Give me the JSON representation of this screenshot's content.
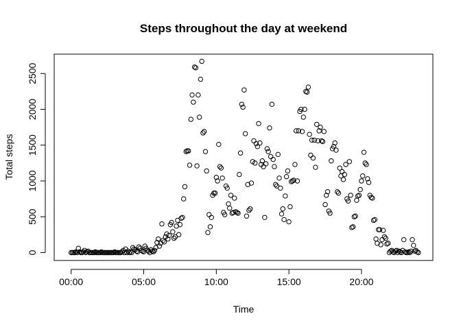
{
  "chart_data": {
    "type": "scatter",
    "title": "Steps throughout the day at weekend",
    "xlabel": "Time",
    "ylabel": "Total steps",
    "x_unit": "minutes since midnight",
    "xlim": [
      -70,
      1495
    ],
    "ylim": [
      -110,
      2770
    ],
    "x_ticks": [
      {
        "value": 0,
        "label": "00:00"
      },
      {
        "value": 300,
        "label": "05:00"
      },
      {
        "value": 600,
        "label": "10:00"
      },
      {
        "value": 900,
        "label": "15:00"
      },
      {
        "value": 1200,
        "label": "20:00"
      }
    ],
    "y_ticks": [
      {
        "value": 0,
        "label": "0"
      },
      {
        "value": 500,
        "label": "500"
      },
      {
        "value": 1000,
        "label": "1000"
      },
      {
        "value": 1500,
        "label": "1500"
      },
      {
        "value": 2000,
        "label": "2000"
      },
      {
        "value": 2500,
        "label": "2500"
      }
    ],
    "grid": false,
    "marker": "open-circle",
    "points": [
      [
        0,
        0
      ],
      [
        5,
        0
      ],
      [
        10,
        0
      ],
      [
        15,
        0
      ],
      [
        20,
        10
      ],
      [
        25,
        0
      ],
      [
        30,
        60
      ],
      [
        35,
        10
      ],
      [
        40,
        0
      ],
      [
        45,
        0
      ],
      [
        50,
        10
      ],
      [
        55,
        30
      ],
      [
        60,
        0
      ],
      [
        65,
        10
      ],
      [
        70,
        20
      ],
      [
        75,
        0
      ],
      [
        80,
        0
      ],
      [
        85,
        0
      ],
      [
        90,
        0
      ],
      [
        95,
        0
      ],
      [
        100,
        10
      ],
      [
        105,
        0
      ],
      [
        110,
        0
      ],
      [
        115,
        0
      ],
      [
        120,
        0
      ],
      [
        125,
        10
      ],
      [
        130,
        0
      ],
      [
        135,
        0
      ],
      [
        140,
        0
      ],
      [
        145,
        0
      ],
      [
        150,
        0
      ],
      [
        155,
        0
      ],
      [
        160,
        0
      ],
      [
        165,
        0
      ],
      [
        170,
        0
      ],
      [
        175,
        0
      ],
      [
        180,
        10
      ],
      [
        185,
        0
      ],
      [
        190,
        0
      ],
      [
        195,
        0
      ],
      [
        200,
        0
      ],
      [
        205,
        0
      ],
      [
        210,
        10
      ],
      [
        215,
        30
      ],
      [
        220,
        0
      ],
      [
        225,
        50
      ],
      [
        230,
        0
      ],
      [
        235,
        20
      ],
      [
        240,
        0
      ],
      [
        245,
        10
      ],
      [
        250,
        0
      ],
      [
        255,
        70
      ],
      [
        260,
        50
      ],
      [
        265,
        40
      ],
      [
        270,
        20
      ],
      [
        275,
        10
      ],
      [
        280,
        80
      ],
      [
        285,
        60
      ],
      [
        290,
        30
      ],
      [
        295,
        20
      ],
      [
        300,
        10
      ],
      [
        305,
        90
      ],
      [
        310,
        60
      ],
      [
        315,
        30
      ],
      [
        320,
        20
      ],
      [
        325,
        0
      ],
      [
        330,
        40
      ],
      [
        335,
        20
      ],
      [
        340,
        10
      ],
      [
        345,
        30
      ],
      [
        350,
        70
      ],
      [
        355,
        140
      ],
      [
        360,
        190
      ],
      [
        365,
        90
      ],
      [
        370,
        130
      ],
      [
        375,
        400
      ],
      [
        380,
        170
      ],
      [
        385,
        150
      ],
      [
        390,
        220
      ],
      [
        395,
        260
      ],
      [
        400,
        190
      ],
      [
        405,
        240
      ],
      [
        410,
        390
      ],
      [
        415,
        420
      ],
      [
        420,
        290
      ],
      [
        425,
        200
      ],
      [
        430,
        220
      ],
      [
        435,
        370
      ],
      [
        440,
        450
      ],
      [
        445,
        250
      ],
      [
        450,
        390
      ],
      [
        455,
        480
      ],
      [
        460,
        490
      ],
      [
        465,
        750
      ],
      [
        470,
        920
      ],
      [
        475,
        1410
      ],
      [
        480,
        1420
      ],
      [
        485,
        1420
      ],
      [
        490,
        1220
      ],
      [
        495,
        1860
      ],
      [
        500,
        2200
      ],
      [
        505,
        2100
      ],
      [
        510,
        2590
      ],
      [
        515,
        2580
      ],
      [
        520,
        1210
      ],
      [
        525,
        2200
      ],
      [
        530,
        1890
      ],
      [
        535,
        2420
      ],
      [
        540,
        2670
      ],
      [
        545,
        1670
      ],
      [
        550,
        1690
      ],
      [
        555,
        1410
      ],
      [
        560,
        1140
      ],
      [
        565,
        280
      ],
      [
        570,
        530
      ],
      [
        575,
        360
      ],
      [
        580,
        490
      ],
      [
        585,
        800
      ],
      [
        590,
        830
      ],
      [
        595,
        830
      ],
      [
        600,
        1050
      ],
      [
        605,
        1000
      ],
      [
        610,
        1510
      ],
      [
        615,
        1200
      ],
      [
        620,
        1180
      ],
      [
        625,
        1040
      ],
      [
        630,
        560
      ],
      [
        635,
        530
      ],
      [
        640,
        930
      ],
      [
        645,
        900
      ],
      [
        650,
        680
      ],
      [
        655,
        620
      ],
      [
        660,
        800
      ],
      [
        665,
        550
      ],
      [
        670,
        560
      ],
      [
        675,
        760
      ],
      [
        680,
        570
      ],
      [
        685,
        560
      ],
      [
        690,
        550
      ],
      [
        695,
        1090
      ],
      [
        700,
        1390
      ],
      [
        705,
        2070
      ],
      [
        710,
        2030
      ],
      [
        715,
        2270
      ],
      [
        720,
        1660
      ],
      [
        725,
        510
      ],
      [
        730,
        950
      ],
      [
        735,
        590
      ],
      [
        740,
        610
      ],
      [
        745,
        970
      ],
      [
        750,
        1270
      ],
      [
        755,
        1560
      ],
      [
        760,
        1250
      ],
      [
        765,
        1520
      ],
      [
        770,
        1480
      ],
      [
        775,
        1800
      ],
      [
        780,
        1530
      ],
      [
        785,
        1230
      ],
      [
        790,
        1280
      ],
      [
        795,
        1200
      ],
      [
        800,
        490
      ],
      [
        805,
        1240
      ],
      [
        810,
        1450
      ],
      [
        815,
        1410
      ],
      [
        820,
        1740
      ],
      [
        825,
        1340
      ],
      [
        830,
        2070
      ],
      [
        835,
        1300
      ],
      [
        840,
        1200
      ],
      [
        845,
        950
      ],
      [
        850,
        930
      ],
      [
        855,
        1370
      ],
      [
        860,
        1040
      ],
      [
        865,
        900
      ],
      [
        870,
        540
      ],
      [
        875,
        610
      ],
      [
        880,
        460
      ],
      [
        885,
        790
      ],
      [
        890,
        1060
      ],
      [
        895,
        1140
      ],
      [
        900,
        430
      ],
      [
        905,
        640
      ],
      [
        910,
        990
      ],
      [
        915,
        1000
      ],
      [
        920,
        1010
      ],
      [
        925,
        1230
      ],
      [
        930,
        1700
      ],
      [
        935,
        1000
      ],
      [
        940,
        1700
      ],
      [
        945,
        1970
      ],
      [
        950,
        2000
      ],
      [
        955,
        1690
      ],
      [
        960,
        1890
      ],
      [
        965,
        2000
      ],
      [
        970,
        2250
      ],
      [
        975,
        2240
      ],
      [
        980,
        2310
      ],
      [
        985,
        1650
      ],
      [
        990,
        1360
      ],
      [
        995,
        1570
      ],
      [
        1000,
        1320
      ],
      [
        1005,
        1570
      ],
      [
        1010,
        1190
      ],
      [
        1015,
        1790
      ],
      [
        1020,
        1560
      ],
      [
        1025,
        1700
      ],
      [
        1030,
        1750
      ],
      [
        1035,
        1560
      ],
      [
        1040,
        1550
      ],
      [
        1045,
        1690
      ],
      [
        1050,
        670
      ],
      [
        1055,
        800
      ],
      [
        1060,
        850
      ],
      [
        1065,
        580
      ],
      [
        1070,
        550
      ],
      [
        1075,
        1280
      ],
      [
        1080,
        1450
      ],
      [
        1085,
        1480
      ],
      [
        1090,
        1530
      ],
      [
        1095,
        1430
      ],
      [
        1100,
        850
      ],
      [
        1105,
        830
      ],
      [
        1110,
        1180
      ],
      [
        1115,
        1070
      ],
      [
        1120,
        1130
      ],
      [
        1125,
        1020
      ],
      [
        1130,
        1090
      ],
      [
        1135,
        1230
      ],
      [
        1140,
        750
      ],
      [
        1145,
        720
      ],
      [
        1150,
        1270
      ],
      [
        1155,
        800
      ],
      [
        1160,
        350
      ],
      [
        1165,
        360
      ],
      [
        1170,
        500
      ],
      [
        1175,
        510
      ],
      [
        1180,
        730
      ],
      [
        1185,
        790
      ],
      [
        1190,
        800
      ],
      [
        1195,
        880
      ],
      [
        1200,
        1000
      ],
      [
        1205,
        1070
      ],
      [
        1210,
        1400
      ],
      [
        1215,
        1250
      ],
      [
        1220,
        1230
      ],
      [
        1225,
        1030
      ],
      [
        1230,
        980
      ],
      [
        1235,
        800
      ],
      [
        1240,
        770
      ],
      [
        1245,
        760
      ],
      [
        1250,
        450
      ],
      [
        1255,
        460
      ],
      [
        1260,
        190
      ],
      [
        1265,
        130
      ],
      [
        1270,
        320
      ],
      [
        1275,
        320
      ],
      [
        1280,
        110
      ],
      [
        1285,
        180
      ],
      [
        1290,
        310
      ],
      [
        1295,
        220
      ],
      [
        1300,
        200
      ],
      [
        1305,
        120
      ],
      [
        1310,
        130
      ],
      [
        1315,
        0
      ],
      [
        1320,
        20
      ],
      [
        1325,
        30
      ],
      [
        1330,
        10
      ],
      [
        1335,
        0
      ],
      [
        1340,
        20
      ],
      [
        1345,
        30
      ],
      [
        1350,
        0
      ],
      [
        1355,
        20
      ],
      [
        1360,
        10
      ],
      [
        1365,
        0
      ],
      [
        1370,
        30
      ],
      [
        1375,
        180
      ],
      [
        1380,
        10
      ],
      [
        1385,
        0
      ],
      [
        1390,
        0
      ],
      [
        1395,
        10
      ],
      [
        1400,
        0
      ],
      [
        1405,
        20
      ],
      [
        1410,
        180
      ],
      [
        1415,
        100
      ],
      [
        1420,
        20
      ],
      [
        1425,
        30
      ],
      [
        1430,
        10
      ],
      [
        1435,
        0
      ]
    ]
  }
}
